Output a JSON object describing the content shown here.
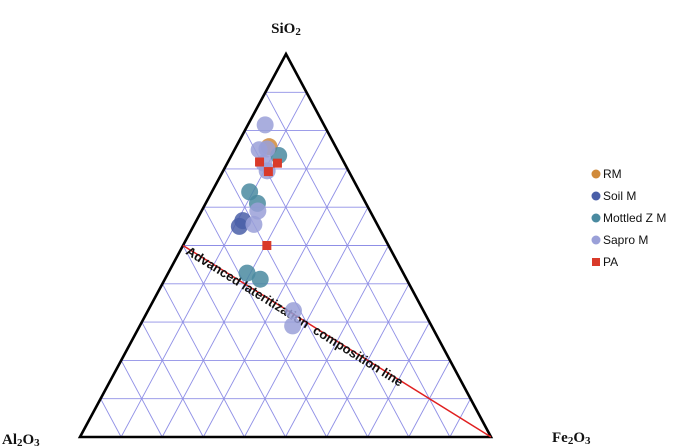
{
  "chart_data": {
    "type": "scatter",
    "subtype": "ternary",
    "title": "",
    "vertices": {
      "top": "SiO2",
      "left": "Al2O3",
      "right": "Fe2O3"
    },
    "vertex_display": {
      "top": [
        "Si",
        "O",
        "2"
      ],
      "left": [
        "Al",
        "2",
        "O",
        "3"
      ],
      "right": [
        "Fe",
        "2",
        "O",
        "3"
      ]
    },
    "grid": true,
    "grid_color": "#8f8fe6",
    "legend_position": "right",
    "annotation": {
      "text": "Advanced lateritization  composition line",
      "line_from": {
        "SiO2": 0.5,
        "Al2O3": 0.5,
        "Fe2O3": 0.0
      },
      "line_to": {
        "SiO2": 0.0,
        "Al2O3": 0.0,
        "Fe2O3": 1.0
      },
      "line_color": "#e02020"
    },
    "series": [
      {
        "name": "RM",
        "color": "#d08a3a",
        "marker": "circle",
        "points": [
          {
            "SiO2": 0.758,
            "Al2O3": 0.162,
            "Fe2O3": 0.08
          }
        ]
      },
      {
        "name": "Soil M",
        "color": "#4a5fa8",
        "marker": "circle",
        "points": [
          {
            "SiO2": 0.55,
            "Al2O3": 0.338,
            "Fe2O3": 0.112
          },
          {
            "SiO2": 0.565,
            "Al2O3": 0.322,
            "Fe2O3": 0.113
          }
        ]
      },
      {
        "name": "Mottled Z M",
        "color": "#4a8aa0",
        "marker": "circle",
        "points": [
          {
            "SiO2": 0.735,
            "Al2O3": 0.15,
            "Fe2O3": 0.115
          },
          {
            "SiO2": 0.64,
            "Al2O3": 0.268,
            "Fe2O3": 0.092
          },
          {
            "SiO2": 0.61,
            "Al2O3": 0.264,
            "Fe2O3": 0.126
          },
          {
            "SiO2": 0.428,
            "Al2O3": 0.38,
            "Fe2O3": 0.192
          },
          {
            "SiO2": 0.412,
            "Al2O3": 0.356,
            "Fe2O3": 0.232
          }
        ]
      },
      {
        "name": "Sapro M",
        "color": "#9aa0d8",
        "marker": "circle",
        "points": [
          {
            "SiO2": 0.815,
            "Al2O3": 0.143,
            "Fe2O3": 0.042
          },
          {
            "SiO2": 0.75,
            "Al2O3": 0.19,
            "Fe2O3": 0.06
          },
          {
            "SiO2": 0.752,
            "Al2O3": 0.17,
            "Fe2O3": 0.078
          },
          {
            "SiO2": 0.715,
            "Al2O3": 0.196,
            "Fe2O3": 0.089
          },
          {
            "SiO2": 0.695,
            "Al2O3": 0.198,
            "Fe2O3": 0.107
          },
          {
            "SiO2": 0.59,
            "Al2O3": 0.273,
            "Fe2O3": 0.137
          },
          {
            "SiO2": 0.555,
            "Al2O3": 0.3,
            "Fe2O3": 0.145
          },
          {
            "SiO2": 0.33,
            "Al2O3": 0.316,
            "Fe2O3": 0.354
          },
          {
            "SiO2": 0.29,
            "Al2O3": 0.338,
            "Fe2O3": 0.372
          }
        ]
      },
      {
        "name": "PA",
        "color": "#d93a2a",
        "marker": "square",
        "points": [
          {
            "SiO2": 0.718,
            "Al2O3": 0.205,
            "Fe2O3": 0.077
          },
          {
            "SiO2": 0.715,
            "Al2O3": 0.163,
            "Fe2O3": 0.122
          },
          {
            "SiO2": 0.693,
            "Al2O3": 0.196,
            "Fe2O3": 0.111
          },
          {
            "SiO2": 0.5,
            "Al2O3": 0.296,
            "Fe2O3": 0.204
          }
        ]
      }
    ]
  }
}
